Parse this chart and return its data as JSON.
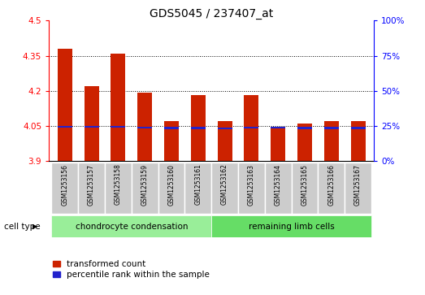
{
  "title": "GDS5045 / 237407_at",
  "samples": [
    "GSM1253156",
    "GSM1253157",
    "GSM1253158",
    "GSM1253159",
    "GSM1253160",
    "GSM1253161",
    "GSM1253162",
    "GSM1253163",
    "GSM1253164",
    "GSM1253165",
    "GSM1253166",
    "GSM1253167"
  ],
  "red_values": [
    4.38,
    4.22,
    4.36,
    4.19,
    4.07,
    4.18,
    4.07,
    4.18,
    4.04,
    4.06,
    4.07,
    4.07
  ],
  "blue_values": [
    4.045,
    4.045,
    4.045,
    4.042,
    4.04,
    4.04,
    4.038,
    4.042,
    4.043,
    4.04,
    4.04,
    4.04
  ],
  "ymin": 3.9,
  "ymax": 4.5,
  "yticks_left": [
    3.9,
    4.05,
    4.2,
    4.35,
    4.5
  ],
  "yticks_right_vals": [
    0,
    25,
    50,
    75,
    100
  ],
  "yticks_right_pos": [
    3.9,
    4.05,
    4.2,
    4.35,
    4.5
  ],
  "bar_color": "#cc2200",
  "blue_color": "#2222cc",
  "bar_width": 0.55,
  "group1_label": "chondrocyte condensation",
  "group2_label": "remaining limb cells",
  "legend_red_label": "transformed count",
  "legend_blue_label": "percentile rank within the sample",
  "cell_type_label": "cell type",
  "gray_color": "#cccccc",
  "green1_color": "#99ee99",
  "green2_color": "#66dd66"
}
